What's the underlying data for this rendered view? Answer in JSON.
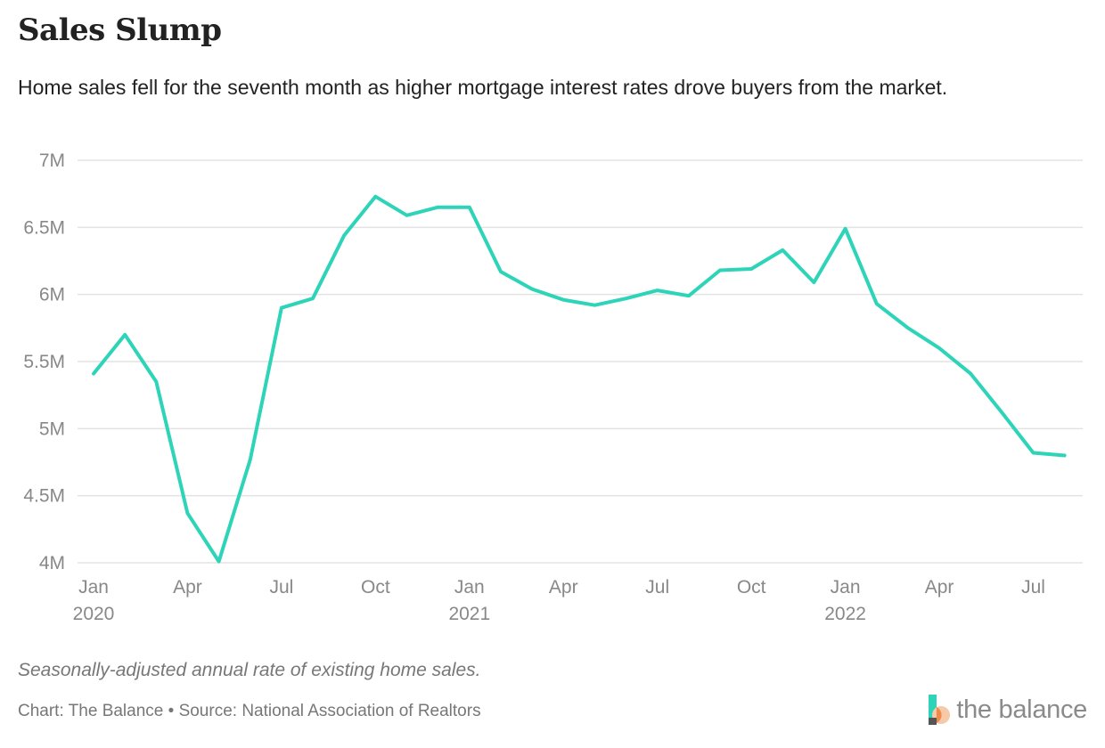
{
  "header": {
    "title": "Sales Slump",
    "subtitle": "Home sales fell for the seventh month as higher mortgage interest rates drove buyers from the market."
  },
  "chart_data": {
    "type": "line",
    "x": [
      "2020-01",
      "2020-02",
      "2020-03",
      "2020-04",
      "2020-05",
      "2020-06",
      "2020-07",
      "2020-08",
      "2020-09",
      "2020-10",
      "2020-11",
      "2020-12",
      "2021-01",
      "2021-02",
      "2021-03",
      "2021-04",
      "2021-05",
      "2021-06",
      "2021-07",
      "2021-08",
      "2021-09",
      "2021-10",
      "2021-11",
      "2021-12",
      "2022-01",
      "2022-02",
      "2022-03",
      "2022-04",
      "2022-05",
      "2022-06",
      "2022-07",
      "2022-08"
    ],
    "series": [
      {
        "values": [
          5.41,
          5.7,
          5.35,
          4.37,
          4.01,
          4.77,
          5.9,
          5.97,
          6.44,
          6.73,
          6.59,
          6.65,
          6.65,
          6.17,
          6.04,
          5.96,
          5.92,
          5.97,
          6.03,
          5.99,
          6.18,
          6.19,
          6.33,
          6.09,
          6.49,
          5.93,
          5.75,
          5.6,
          5.41,
          5.12,
          4.82,
          4.8
        ]
      }
    ],
    "ylim": [
      4,
      7
    ],
    "yticks": [
      4,
      4.5,
      5,
      5.5,
      6,
      6.5,
      7
    ],
    "ytick_labels": [
      "4M",
      "4.5M",
      "5M",
      "5.5M",
      "6M",
      "6.5M",
      "7M"
    ],
    "xticks": [
      {
        "label": "Jan",
        "year": "2020",
        "date": "2020-01"
      },
      {
        "label": "Apr",
        "year": "",
        "date": "2020-04"
      },
      {
        "label": "Jul",
        "year": "",
        "date": "2020-07"
      },
      {
        "label": "Oct",
        "year": "",
        "date": "2020-10"
      },
      {
        "label": "Jan",
        "year": "2021",
        "date": "2021-01"
      },
      {
        "label": "Apr",
        "year": "",
        "date": "2021-04"
      },
      {
        "label": "Jul",
        "year": "",
        "date": "2021-07"
      },
      {
        "label": "Oct",
        "year": "",
        "date": "2021-10"
      },
      {
        "label": "Jan",
        "year": "2022",
        "date": "2022-01"
      },
      {
        "label": "Apr",
        "year": "",
        "date": "2022-04"
      },
      {
        "label": "Jul",
        "year": "",
        "date": "2022-07"
      }
    ],
    "grid": true,
    "line_color": "#2dd4b8",
    "grid_color": "#e3e3e3"
  },
  "footer": {
    "note": "Seasonally-adjusted annual rate of existing home sales.",
    "credit": "Chart: The Balance • Source: National Association of Realtors",
    "logo_text": "the balance",
    "logo_icon": "the-balance-logo-icon"
  }
}
